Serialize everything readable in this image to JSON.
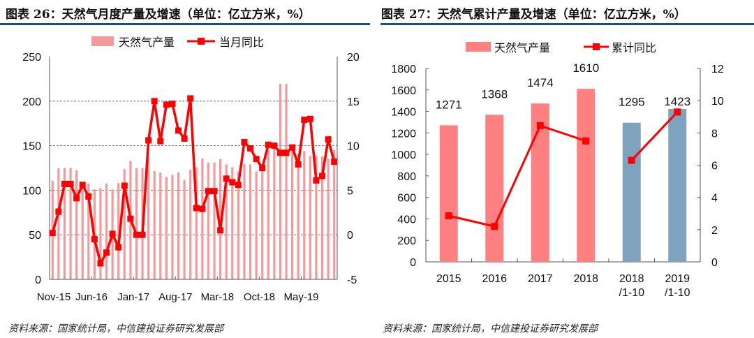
{
  "titles": {
    "left": "图表 26：天然气月度产量及增速（单位：亿立方米，%）",
    "right": "图表 27：天然气累计产量及增速（单位：亿立方米，%）"
  },
  "sources": {
    "left": "资料来源：国家统计局，中信建投证券研究发展部",
    "right": "资料来源：国家统计局，中信建投证券研究发展部"
  },
  "colors": {
    "bar_left": "#f59a9a",
    "bar_right": "#ff8080",
    "bar_ytd": "#7fa3bf",
    "line": "#ff0000",
    "rule": "#1f4e79"
  },
  "chart_data": [
    {
      "type": "bar+line",
      "legend": [
        "天然气产量",
        "当月同比"
      ],
      "legend_position": "top",
      "x_tick_labels": [
        "Nov-15",
        "Jun-16",
        "Jan-17",
        "Aug-17",
        "Mar-18",
        "Oct-18",
        "May-19"
      ],
      "x_range": [
        "Nov-15",
        "Oct-19"
      ],
      "y_left": {
        "range": [
          0,
          250
        ],
        "ticks": [
          0,
          50,
          100,
          150,
          200,
          250
        ]
      },
      "y_right": {
        "range": [
          -5,
          20
        ],
        "ticks": [
          -5,
          0,
          5,
          10,
          15,
          20
        ]
      },
      "grid": "dashed horizontal",
      "series": [
        {
          "name": "天然气产量",
          "axis": "left",
          "type": "bar",
          "values": [
            110.7,
            124.5,
            125,
            125,
            122.4,
            108,
            107.6,
            101,
            102.3,
            107.6,
            101,
            108,
            123.7,
            133,
            125,
            125,
            135.4,
            121.4,
            119.8,
            114.8,
            117.2,
            119.8,
            111.5,
            123,
            125.8,
            135.7,
            131,
            131,
            135,
            129,
            125.8,
            121,
            129.7,
            129,
            121,
            125.8,
            145,
            149,
            219.5,
            219.5,
            149,
            141,
            144,
            138.8,
            138.8,
            138,
            135.4,
            145
          ]
        },
        {
          "name": "当月同比",
          "axis": "right",
          "type": "line",
          "values": [
            0.2,
            2.6,
            5.7,
            5.7,
            4.1,
            5.6,
            4.3,
            -0.5,
            -3.2,
            -2.0,
            0.1,
            -1.4,
            5.5,
            1.8,
            0,
            0,
            10.6,
            15,
            10.5,
            14.6,
            14.7,
            11.7,
            10.8,
            15.3,
            3.0,
            2.9,
            4.9,
            4.9,
            0.5,
            6.3,
            5.9,
            5.6,
            10.4,
            9.7,
            8.5,
            7.5,
            10.1,
            10.0,
            9.2,
            9.2,
            9.8,
            7.9,
            12.9,
            13.0,
            6.1,
            6.6,
            10.7,
            8.2
          ]
        }
      ]
    },
    {
      "type": "bar+line",
      "legend": [
        "天然气产量",
        "累计同比"
      ],
      "legend_position": "top",
      "categories": [
        "2015",
        "2016",
        "2017",
        "2018",
        "2018\n/1-10",
        "2019\n/1-10"
      ],
      "y_left": {
        "range": [
          0,
          1800
        ],
        "ticks": [
          0,
          200,
          400,
          600,
          800,
          1000,
          1200,
          1400,
          1600,
          1800
        ]
      },
      "y_right": {
        "range": [
          0,
          12
        ],
        "ticks": [
          0,
          2,
          4,
          6,
          8,
          10,
          12
        ]
      },
      "grid": "none",
      "series": [
        {
          "name": "天然气产量",
          "axis": "left",
          "type": "bar",
          "values": [
            1271,
            1368,
            1474,
            1610,
            1295,
            1423
          ],
          "data_labels": [
            "1271",
            "1368",
            "1474",
            "1610",
            "1295",
            "1423"
          ]
        },
        {
          "name": "累计同比",
          "axis": "right",
          "type": "line",
          "values": [
            2.86,
            2.2,
            8.45,
            7.5,
            6.3,
            9.3
          ]
        }
      ]
    }
  ]
}
